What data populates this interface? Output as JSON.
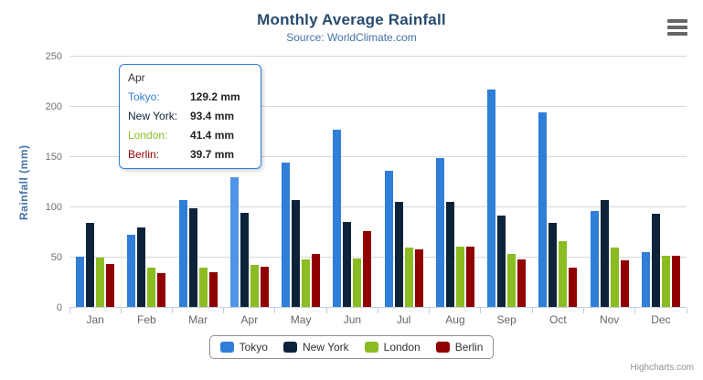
{
  "chart": {
    "title": "Monthly Average Rainfall",
    "subtitle": "Source: WorldClimate.com",
    "y_axis_title": "Rainfall (mm)",
    "credit": "Highcharts.com"
  },
  "chart_data": {
    "type": "bar",
    "title": "Monthly Average Rainfall",
    "subtitle": "Source: WorldClimate.com",
    "categories": [
      "Jan",
      "Feb",
      "Mar",
      "Apr",
      "May",
      "Jun",
      "Jul",
      "Aug",
      "Sep",
      "Oct",
      "Nov",
      "Dec"
    ],
    "series": [
      {
        "name": "Tokyo",
        "color": "#2f7ed8",
        "values": [
          49.9,
          71.5,
          106.4,
          129.2,
          144.0,
          176.0,
          135.6,
          148.5,
          216.4,
          194.1,
          95.6,
          54.4
        ]
      },
      {
        "name": "New York",
        "color": "#0d233a",
        "values": [
          83.6,
          78.8,
          98.5,
          93.4,
          106.0,
          84.5,
          105.0,
          104.3,
          91.2,
          83.5,
          106.6,
          92.3
        ]
      },
      {
        "name": "London",
        "color": "#8bbc21",
        "values": [
          48.9,
          38.8,
          39.3,
          41.4,
          47.0,
          48.3,
          59.0,
          59.6,
          52.4,
          65.2,
          59.3,
          51.2
        ]
      },
      {
        "name": "Berlin",
        "color": "#910000",
        "values": [
          42.4,
          33.2,
          34.5,
          39.7,
          52.6,
          75.5,
          57.4,
          60.4,
          47.6,
          39.1,
          46.8,
          51.1
        ]
      }
    ],
    "xlabel": "",
    "ylabel": "Rainfall (mm)",
    "ylim": [
      0,
      250
    ],
    "yticks": [
      0,
      50,
      100,
      150,
      200,
      250
    ],
    "grid": true,
    "legend_position": "bottom"
  },
  "hover": {
    "series": "Tokyo",
    "category": "Apr",
    "color": "#4f94e8"
  },
  "tooltip": {
    "header": "Apr",
    "rows": [
      {
        "name": "Tokyo",
        "value": "129.2 mm"
      },
      {
        "name": "New York",
        "value": "93.4 mm"
      },
      {
        "name": "London",
        "value": "41.4 mm"
      },
      {
        "name": "Berlin",
        "value": "39.7 mm"
      }
    ]
  },
  "colors": {
    "title": "#274b6d",
    "subtitle": "#4572a7",
    "axis_title": "#4572a7",
    "axis_labels": "#707070",
    "gridline": "#d8d8d8",
    "axis_line": "#c0d0e0",
    "legend_border": "#909090",
    "legend_text": "#333333",
    "tooltip_border": "#2f7ed8",
    "credit": "#909090",
    "menu_icon": "#666666"
  }
}
